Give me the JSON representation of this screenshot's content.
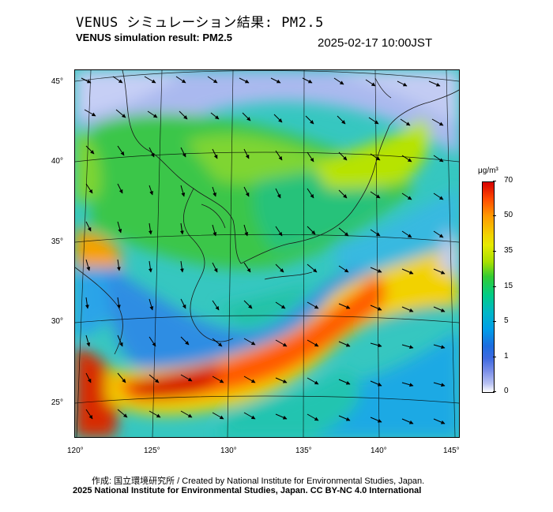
{
  "header": {
    "title_ja": "VENUS シミュレーション結果: PM2.5",
    "title_en": "VENUS simulation result: PM2.5",
    "timestamp": "2025-02-17 10:00JST"
  },
  "map": {
    "lat_labels": [
      "45°",
      "40°",
      "35°",
      "30°",
      "25°"
    ],
    "lon_labels": [
      "120°",
      "125°",
      "130°",
      "135°",
      "140°",
      "145°"
    ]
  },
  "colorbar": {
    "unit": "μg/m³",
    "ticks": [
      "70",
      "50",
      "35",
      "15",
      "5",
      "1",
      "0"
    ],
    "colors": [
      "#d60000",
      "#ff9900",
      "#e6ea00",
      "#33cc33",
      "#00b7c7",
      "#1c6de0",
      "#ffffff"
    ]
  },
  "footer": {
    "credit_ja_en": "作成: 国立環境研究所 / Created by National Institute for Environmental Studies, Japan.",
    "copyright": "2025 National Institute for Environmental Studies, Japan. CC BY-NC 4.0 International"
  }
}
